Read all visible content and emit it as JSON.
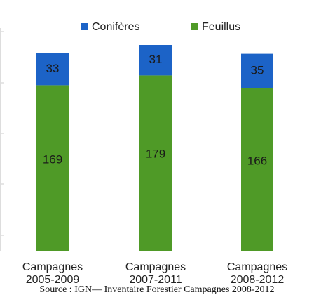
{
  "chart_data": {
    "type": "stacked_bar",
    "categories": [
      "Campagnes 2005-2009",
      "Campagnes 2007-2011",
      "Campagnes 2008-2012"
    ],
    "series": [
      {
        "name": "Feuillus",
        "color": "#4f9a27",
        "values": [
          169,
          179,
          166
        ]
      },
      {
        "name": "Conifères",
        "color": "#1c63c7",
        "values": [
          33,
          31,
          35
        ]
      }
    ],
    "source": "Source : IGN— Inventaire Forestier Campagnes 2008-2012"
  }
}
